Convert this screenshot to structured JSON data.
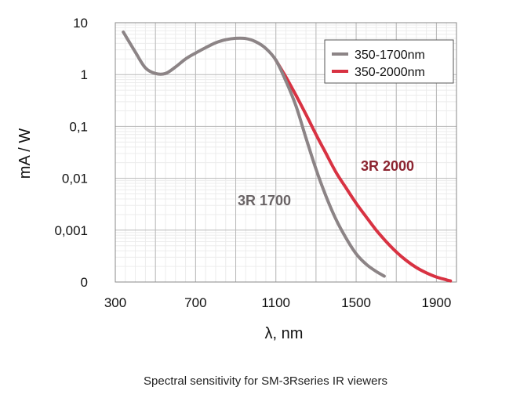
{
  "chart_data": {
    "type": "line",
    "title": "",
    "xlabel": "λ, nm",
    "ylabel": "mA / W",
    "xlim": [
      300,
      2000
    ],
    "ylim_log10": [
      -4,
      1
    ],
    "y_scale": "log",
    "x_ticks": [
      300,
      700,
      1100,
      1500,
      1900
    ],
    "y_ticks": [
      {
        "value_log10": 1,
        "label": "10"
      },
      {
        "value_log10": 0,
        "label": "1"
      },
      {
        "value_log10": -1,
        "label": "0,1"
      },
      {
        "value_log10": -2,
        "label": "0,01"
      },
      {
        "value_log10": -3,
        "label": "0,001"
      },
      {
        "value_log10": -4,
        "label": "0"
      }
    ],
    "grid": true,
    "legend_position": "top-right",
    "series": [
      {
        "name": "350-1700nm",
        "color": "#8c8486",
        "points": [
          [
            340,
            6.6
          ],
          [
            400,
            2.7
          ],
          [
            450,
            1.35
          ],
          [
            500,
            1.05
          ],
          [
            550,
            1.05
          ],
          [
            600,
            1.4
          ],
          [
            650,
            2.0
          ],
          [
            700,
            2.6
          ],
          [
            750,
            3.3
          ],
          [
            800,
            4.1
          ],
          [
            850,
            4.7
          ],
          [
            900,
            5.0
          ],
          [
            950,
            4.95
          ],
          [
            1000,
            4.3
          ],
          [
            1050,
            3.2
          ],
          [
            1100,
            1.9
          ],
          [
            1150,
            0.75
          ],
          [
            1200,
            0.25
          ],
          [
            1250,
            0.06
          ],
          [
            1300,
            0.015
          ],
          [
            1350,
            0.0045
          ],
          [
            1400,
            0.0016
          ],
          [
            1450,
            0.0007
          ],
          [
            1500,
            0.00035
          ],
          [
            1550,
            0.00022
          ],
          [
            1600,
            0.00016
          ],
          [
            1640,
            0.00013
          ]
        ]
      },
      {
        "name": "350-2000nm",
        "color": "#d83242",
        "points": [
          [
            1100,
            1.9
          ],
          [
            1150,
            0.9
          ],
          [
            1200,
            0.4
          ],
          [
            1250,
            0.17
          ],
          [
            1300,
            0.07
          ],
          [
            1350,
            0.03
          ],
          [
            1400,
            0.013
          ],
          [
            1450,
            0.0065
          ],
          [
            1500,
            0.0033
          ],
          [
            1550,
            0.0018
          ],
          [
            1600,
            0.001
          ],
          [
            1650,
            0.0006
          ],
          [
            1700,
            0.00038
          ],
          [
            1750,
            0.00026
          ],
          [
            1800,
            0.00019
          ],
          [
            1850,
            0.00015
          ],
          [
            1900,
            0.000125
          ],
          [
            1950,
            0.00011
          ],
          [
            1970,
            0.000105
          ]
        ]
      }
    ],
    "annotations": [
      {
        "text": "3R 1700",
        "color": "#6a6466"
      },
      {
        "text": "3R 2000",
        "color": "#8c2430"
      }
    ]
  },
  "caption": "Spectral sensitivity for SM-3Rseries IR viewers"
}
